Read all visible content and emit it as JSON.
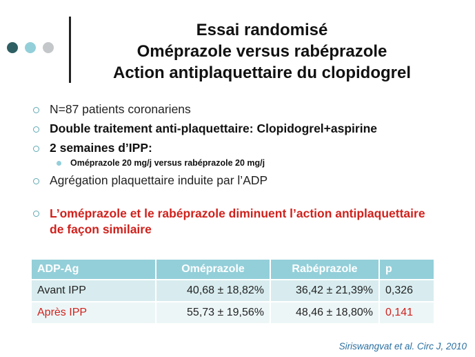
{
  "title": {
    "line1": "Essai randomisé",
    "line2": "Oméprazole versus rabéprazole",
    "line3": "Action antiplaquettaire du clopidogrel"
  },
  "bullets": [
    "N=87 patients coronariens",
    "Double traitement anti-plaquettaire: Clopidogrel+aspirine",
    "2 semaines d’IPP:",
    "Agrégation plaquettaire induite par l’ADP",
    "L’oméprazole et le rabéprazole diminuent l’action antiplaquettaire de façon similaire"
  ],
  "sub_bullet": "Oméprazole 20 mg/j versus rabéprazole 20 mg/j",
  "table": {
    "headers": [
      "ADP-Ag",
      "Oméprazole",
      "Rabéprazole",
      "p"
    ],
    "rows": [
      [
        "Avant IPP",
        "40,68 ± 18,82%",
        "36,42 ± 21,39%",
        "0,326"
      ],
      [
        "Après IPP",
        "55,73 ± 19,56%",
        "48,46 ± 18,80%",
        "0,141"
      ]
    ]
  },
  "citation": "Siriswangvat et al. Circ J, 2010",
  "colors": {
    "accent_teal": "#93cfd9",
    "dark_teal": "#2e5f63",
    "grey": "#c4c7c9",
    "red": "#d0211c"
  }
}
